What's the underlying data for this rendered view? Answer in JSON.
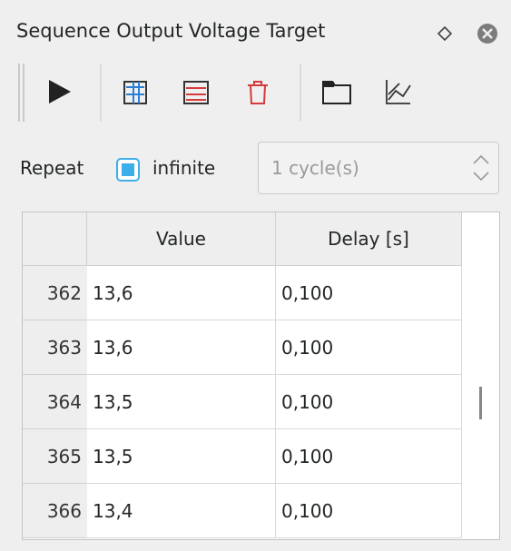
{
  "title": "Sequence Output Voltage Target",
  "repeat": {
    "label": "Repeat",
    "checkbox_label": "infinite",
    "cycles": "1 cycle(s)"
  },
  "table": {
    "headers": [
      "Value",
      "Delay [s]"
    ],
    "rows": [
      {
        "index": "362",
        "cells": [
          "13,6",
          "0,100"
        ]
      },
      {
        "index": "363",
        "cells": [
          "13,6",
          "0,100"
        ]
      },
      {
        "index": "364",
        "cells": [
          "13,5",
          "0,100"
        ]
      },
      {
        "index": "365",
        "cells": [
          "13,5",
          "0,100"
        ]
      },
      {
        "index": "366",
        "cells": [
          "13,4",
          "0,100"
        ]
      }
    ]
  }
}
